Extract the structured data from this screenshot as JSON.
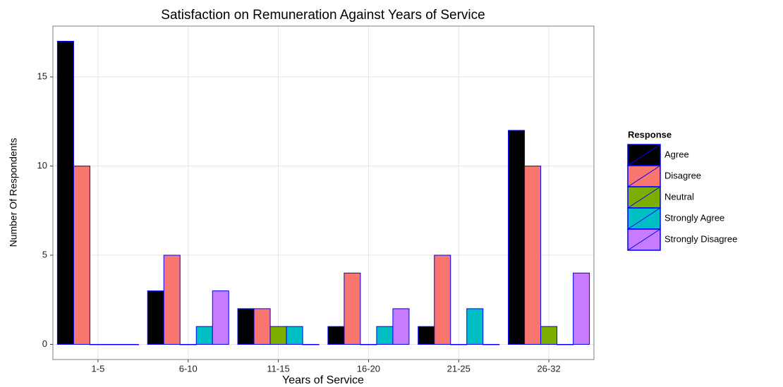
{
  "chart_data": {
    "type": "bar",
    "title": "Satisfaction on Remuneration Against Years of Service",
    "x_label": "Years of Service",
    "y_label": "Number Of Respondents",
    "legend_title": "Response",
    "categories": [
      "1-5",
      "6-10",
      "11-15",
      "16-20",
      "21-25",
      "26-32"
    ],
    "series": [
      {
        "name": "Agree",
        "color": "#000000",
        "values": [
          17,
          3,
          2,
          1,
          1,
          12
        ]
      },
      {
        "name": "Disagree",
        "color": "#F8766D",
        "values": [
          10,
          5,
          2,
          4,
          5,
          10
        ]
      },
      {
        "name": "Neutral",
        "color": "#7CAE00",
        "values": [
          0,
          0,
          1,
          0,
          0,
          1
        ]
      },
      {
        "name": "Strongly Agree",
        "color": "#00BFC4",
        "values": [
          0,
          1,
          1,
          1,
          2,
          0
        ]
      },
      {
        "name": "Strongly Disagree",
        "color": "#C77CFF",
        "values": [
          0,
          3,
          0,
          2,
          0,
          4
        ]
      }
    ],
    "bar_outline": "#0000FF",
    "ylim": [
      -0.85,
      17.85
    ],
    "yticks": [
      0,
      5,
      10,
      15
    ],
    "grid": true,
    "legend_position": "right"
  }
}
